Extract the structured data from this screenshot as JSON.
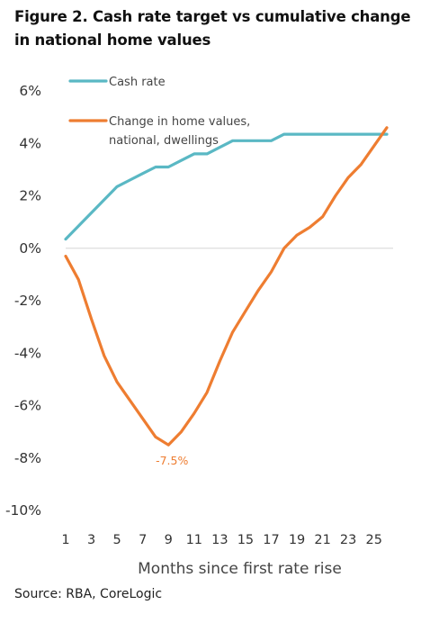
{
  "title": "Figure 2. Cash rate target vs cumulative change in national home values",
  "source": "Source: RBA, CoreLogic",
  "chart_data": {
    "type": "line",
    "xlabel": "Months since first rate rise",
    "ylabel": "",
    "xlim": [
      1,
      26
    ],
    "ylim": [
      -10,
      6
    ],
    "x_ticks": [
      1,
      3,
      5,
      7,
      9,
      11,
      13,
      15,
      17,
      19,
      21,
      23,
      25
    ],
    "y_ticks": [
      "6%",
      "4%",
      "2%",
      "0%",
      "-2%",
      "-4%",
      "-6%",
      "-8%",
      "-10%"
    ],
    "y_tick_values": [
      6,
      4,
      2,
      0,
      -2,
      -4,
      -6,
      -8,
      -10
    ],
    "x": [
      1,
      2,
      3,
      4,
      5,
      6,
      7,
      8,
      9,
      10,
      11,
      12,
      13,
      14,
      15,
      16,
      17,
      18,
      19,
      20,
      21,
      22,
      23,
      24,
      25,
      26
    ],
    "series": [
      {
        "name": "Cash rate",
        "color": "#5ab8c4",
        "values": [
          0.35,
          0.85,
          1.35,
          1.85,
          2.35,
          2.6,
          2.85,
          3.1,
          3.1,
          3.35,
          3.6,
          3.6,
          3.85,
          4.1,
          4.1,
          4.1,
          4.1,
          4.35,
          4.35,
          4.35,
          4.35,
          4.35,
          4.35,
          4.35,
          4.35,
          4.35
        ]
      },
      {
        "name": "Change in home values, national, dwellings",
        "color": "#ee7d31",
        "values": [
          -0.3,
          -1.2,
          -2.7,
          -4.1,
          -5.1,
          -5.8,
          -6.5,
          -7.2,
          -7.5,
          -7.0,
          -6.3,
          -5.5,
          -4.3,
          -3.2,
          -2.4,
          -1.6,
          -0.9,
          0.0,
          0.5,
          0.8,
          1.2,
          2.0,
          2.7,
          3.2,
          3.9,
          4.6
        ]
      }
    ],
    "annotations": [
      {
        "text": "-7.5%",
        "x": 9,
        "y": -7.5,
        "series": 1
      }
    ],
    "legend_position": "top-left",
    "grid": false,
    "zero_line": true
  }
}
